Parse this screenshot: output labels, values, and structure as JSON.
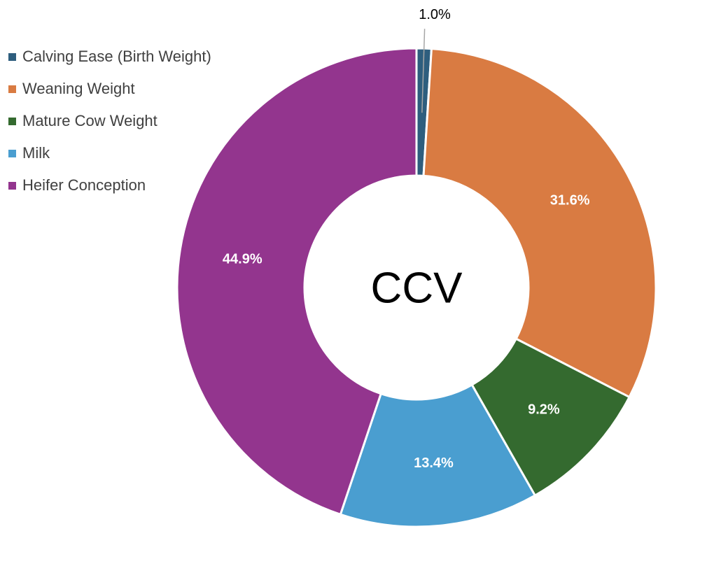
{
  "chart_data": {
    "type": "pie",
    "variant": "donut",
    "center_label": "CCV",
    "labels": [
      "Calving Ease (Birth Weight)",
      "Weaning Weight",
      "Mature Cow Weight",
      "Milk",
      "Heifer Conception"
    ],
    "values": [
      1.0,
      31.6,
      9.2,
      13.4,
      44.9
    ],
    "value_labels": [
      "1.0%",
      "31.6%",
      "9.2%",
      "13.4%",
      "44.9%"
    ],
    "colors": [
      "#2e5e7e",
      "#d97b42",
      "#346a2f",
      "#4a9ed0",
      "#93358e"
    ],
    "unit": "%",
    "legend_position": "top-left"
  }
}
